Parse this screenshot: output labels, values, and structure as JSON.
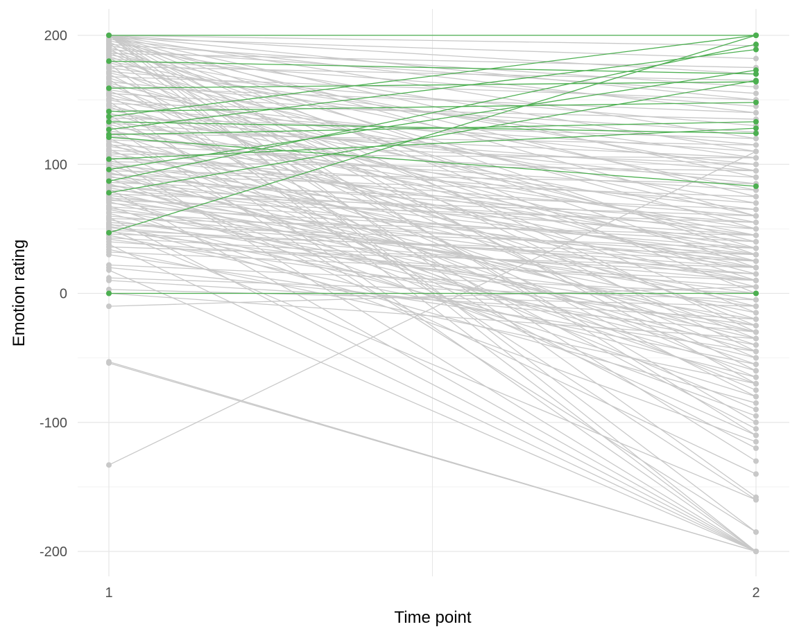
{
  "chart_data": {
    "type": "line",
    "title": "",
    "xlabel": "Time point",
    "ylabel": "Emotion rating",
    "x_categories": [
      "1",
      "2"
    ],
    "y_ticks": [
      -200,
      -100,
      0,
      100,
      200
    ],
    "y_tick_labels": [
      "-200",
      "-100",
      "0",
      "100",
      "200"
    ],
    "ylim": [
      -220,
      220
    ],
    "grid": true,
    "legend": "none",
    "colors": {
      "grey": "#c8c8c8",
      "green": "#4caf50",
      "grid_major": "#e6e6e6",
      "grid_minor": "#f2f2f2"
    },
    "highlighted_series": [
      {
        "t1": 200,
        "t2": 200
      },
      {
        "t1": 180,
        "t2": 170
      },
      {
        "t1": 159,
        "t2": 164
      },
      {
        "t1": 141,
        "t2": 148
      },
      {
        "t1": 137,
        "t2": 200
      },
      {
        "t1": 133,
        "t2": 124
      },
      {
        "t1": 127,
        "t2": 189
      },
      {
        "t1": 123,
        "t2": 133
      },
      {
        "t1": 121,
        "t2": 83
      },
      {
        "t1": 104,
        "t2": 128
      },
      {
        "t1": 96,
        "t2": 173
      },
      {
        "t1": 87,
        "t2": 193
      },
      {
        "t1": 78,
        "t2": 165
      },
      {
        "t1": 47,
        "t2": 200
      },
      {
        "t1": 0,
        "t2": 0
      }
    ],
    "grey_series": [
      {
        "t1": 200,
        "t2": 192
      },
      {
        "t1": 200,
        "t2": 170
      },
      {
        "t1": 200,
        "t2": 150
      },
      {
        "t1": 200,
        "t2": 120
      },
      {
        "t1": 200,
        "t2": 90
      },
      {
        "t1": 200,
        "t2": 60
      },
      {
        "t1": 200,
        "t2": 30
      },
      {
        "t1": 200,
        "t2": 0
      },
      {
        "t1": 200,
        "t2": -30
      },
      {
        "t1": 200,
        "t2": -70
      },
      {
        "t1": 200,
        "t2": -110
      },
      {
        "t1": 200,
        "t2": -158
      },
      {
        "t1": 200,
        "t2": -200
      },
      {
        "t1": 198,
        "t2": 182
      },
      {
        "t1": 197,
        "t2": 140
      },
      {
        "t1": 196,
        "t2": 75
      },
      {
        "t1": 195,
        "t2": -45
      },
      {
        "t1": 194,
        "t2": -185
      },
      {
        "t1": 193,
        "t2": 160
      },
      {
        "t1": 192,
        "t2": 110
      },
      {
        "t1": 191,
        "t2": 20
      },
      {
        "t1": 190,
        "t2": -100
      },
      {
        "t1": 189,
        "t2": 155
      },
      {
        "t1": 188,
        "t2": 50
      },
      {
        "t1": 187,
        "t2": -60
      },
      {
        "t1": 186,
        "t2": 175
      },
      {
        "t1": 185,
        "t2": 95
      },
      {
        "t1": 184,
        "t2": -15
      },
      {
        "t1": 183,
        "t2": -130
      },
      {
        "t1": 182,
        "t2": 145
      },
      {
        "t1": 180,
        "t2": 80
      },
      {
        "t1": 179,
        "t2": 35
      },
      {
        "t1": 178,
        "t2": -200
      },
      {
        "t1": 176,
        "t2": 165
      },
      {
        "t1": 175,
        "t2": 105
      },
      {
        "t1": 174,
        "t2": -25
      },
      {
        "t1": 172,
        "t2": 130
      },
      {
        "t1": 171,
        "t2": 60
      },
      {
        "t1": 170,
        "t2": -80
      },
      {
        "t1": 168,
        "t2": 150
      },
      {
        "t1": 167,
        "t2": 10
      },
      {
        "t1": 166,
        "t2": -160
      },
      {
        "t1": 164,
        "t2": 115
      },
      {
        "t1": 163,
        "t2": 40
      },
      {
        "t1": 162,
        "t2": -50
      },
      {
        "t1": 160,
        "t2": 140
      },
      {
        "t1": 158,
        "t2": 70
      },
      {
        "t1": 157,
        "t2": -35
      },
      {
        "t1": 155,
        "t2": 125
      },
      {
        "t1": 154,
        "t2": 25
      },
      {
        "t1": 153,
        "t2": -105
      },
      {
        "t1": 151,
        "t2": 100
      },
      {
        "t1": 150,
        "t2": 55
      },
      {
        "t1": 149,
        "t2": -200
      },
      {
        "t1": 147,
        "t2": 135
      },
      {
        "t1": 146,
        "t2": 15
      },
      {
        "t1": 145,
        "t2": -65
      },
      {
        "t1": 143,
        "t2": 110
      },
      {
        "t1": 142,
        "t2": 45
      },
      {
        "t1": 140,
        "t2": -20
      },
      {
        "t1": 139,
        "t2": 85
      },
      {
        "t1": 138,
        "t2": -120
      },
      {
        "t1": 136,
        "t2": 120
      },
      {
        "t1": 135,
        "t2": 30
      },
      {
        "t1": 134,
        "t2": -75
      },
      {
        "t1": 132,
        "t2": 95
      },
      {
        "t1": 131,
        "t2": 5
      },
      {
        "t1": 130,
        "t2": -185
      },
      {
        "t1": 128,
        "t2": 105
      },
      {
        "t1": 126,
        "t2": 50
      },
      {
        "t1": 125,
        "t2": -40
      },
      {
        "t1": 124,
        "t2": 115
      },
      {
        "t1": 122,
        "t2": 65
      },
      {
        "t1": 120,
        "t2": -90
      },
      {
        "t1": 119,
        "t2": 100
      },
      {
        "t1": 118,
        "t2": 20
      },
      {
        "t1": 116,
        "t2": -55
      },
      {
        "t1": 115,
        "t2": 90
      },
      {
        "t1": 114,
        "t2": 35
      },
      {
        "t1": 112,
        "t2": -110
      },
      {
        "t1": 111,
        "t2": 80
      },
      {
        "t1": 110,
        "t2": -10
      },
      {
        "t1": 108,
        "t2": 105
      },
      {
        "t1": 107,
        "t2": 45
      },
      {
        "t1": 106,
        "t2": -200
      },
      {
        "t1": 105,
        "t2": 70
      },
      {
        "t1": 103,
        "t2": -30
      },
      {
        "t1": 102,
        "t2": 95
      },
      {
        "t1": 101,
        "t2": 25
      },
      {
        "t1": 100,
        "t2": -70
      },
      {
        "t1": 99,
        "t2": 60
      },
      {
        "t1": 98,
        "t2": 10
      },
      {
        "t1": 97,
        "t2": -140
      },
      {
        "t1": 95,
        "t2": 85
      },
      {
        "t1": 94,
        "t2": -45
      },
      {
        "t1": 93,
        "t2": 40
      },
      {
        "t1": 92,
        "t2": 75
      },
      {
        "t1": 91,
        "t2": -25
      },
      {
        "t1": 90,
        "t2": 55
      },
      {
        "t1": 89,
        "t2": -95
      },
      {
        "t1": 88,
        "t2": 30
      },
      {
        "t1": 86,
        "t2": 65
      },
      {
        "t1": 85,
        "t2": -60
      },
      {
        "t1": 84,
        "t2": 20
      },
      {
        "t1": 83,
        "t2": 50
      },
      {
        "t1": 82,
        "t2": -15
      },
      {
        "t1": 81,
        "t2": -200
      },
      {
        "t1": 80,
        "t2": 45
      },
      {
        "t1": 79,
        "t2": -35
      },
      {
        "t1": 77,
        "t2": 60
      },
      {
        "t1": 76,
        "t2": 10
      },
      {
        "t1": 75,
        "t2": -80
      },
      {
        "t1": 74,
        "t2": 35
      },
      {
        "t1": 73,
        "t2": -5
      },
      {
        "t1": 72,
        "t2": 55
      },
      {
        "t1": 71,
        "t2": -50
      },
      {
        "t1": 70,
        "t2": 25
      },
      {
        "t1": 68,
        "t2": -115
      },
      {
        "t1": 67,
        "t2": 40
      },
      {
        "t1": 66,
        "t2": 0
      },
      {
        "t1": 65,
        "t2": -30
      },
      {
        "t1": 63,
        "t2": 30
      },
      {
        "t1": 62,
        "t2": -65
      },
      {
        "t1": 60,
        "t2": 15
      },
      {
        "t1": 59,
        "t2": -200
      },
      {
        "t1": 58,
        "t2": 45
      },
      {
        "t1": 57,
        "t2": -20
      },
      {
        "t1": 55,
        "t2": 20
      },
      {
        "t1": 54,
        "t2": -85
      },
      {
        "t1": 53,
        "t2": 35
      },
      {
        "t1": 52,
        "t2": -40
      },
      {
        "t1": 51,
        "t2": 10
      },
      {
        "t1": 50,
        "t2": -160
      },
      {
        "t1": 49,
        "t2": 25
      },
      {
        "t1": 48,
        "t2": -10
      },
      {
        "t1": 46,
        "t2": 30
      },
      {
        "t1": 45,
        "t2": -55
      },
      {
        "t1": 43,
        "t2": 15
      },
      {
        "t1": 42,
        "t2": -25
      },
      {
        "t1": 40,
        "t2": 5
      },
      {
        "t1": 38,
        "t2": -200
      },
      {
        "t1": 36,
        "t2": 20
      },
      {
        "t1": 34,
        "t2": -70
      },
      {
        "t1": 32,
        "t2": 10
      },
      {
        "t1": 30,
        "t2": -45
      },
      {
        "t1": 22,
        "t2": 0
      },
      {
        "t1": 20,
        "t2": -30
      },
      {
        "t1": 18,
        "t2": -200
      },
      {
        "t1": 12,
        "t2": -5
      },
      {
        "t1": 10,
        "t2": -20
      },
      {
        "t1": 3,
        "t2": -10
      },
      {
        "t1": 0,
        "t2": -35
      },
      {
        "t1": -10,
        "t2": 5
      },
      {
        "t1": -53,
        "t2": -200
      },
      {
        "t1": -54,
        "t2": -200
      },
      {
        "t1": -133,
        "t2": 110
      }
    ]
  }
}
